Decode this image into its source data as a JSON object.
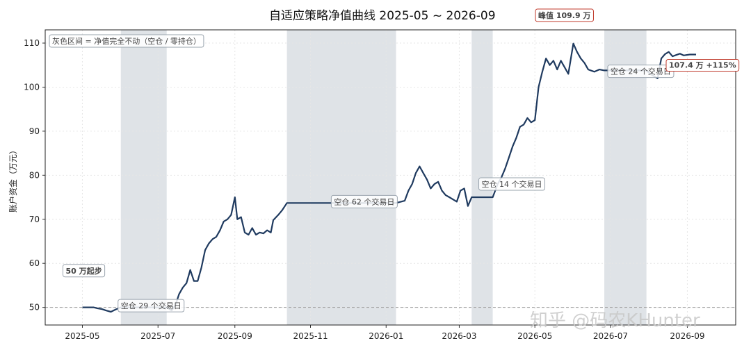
{
  "chart_data": {
    "type": "line",
    "title": "自适应策略净值曲线  2025-05 ~ 2026-09",
    "ylabel": "账户资金（万元）",
    "xlabel": "",
    "x_start": "2025-04-01",
    "x_end": "2026-10-10",
    "ylim": [
      46,
      113
    ],
    "yticks": [
      50,
      60,
      70,
      80,
      90,
      100,
      110
    ],
    "xticks": [
      "2025-05",
      "2025-07",
      "2025-09",
      "2025-11",
      "2026-01",
      "2026-03",
      "2026-05",
      "2026-07",
      "2026-09"
    ],
    "grid": true,
    "baseline": {
      "value": 50,
      "style": "dashed"
    },
    "legend_note": "灰色区间 = 净值完全不动（空仓 / 零持仓）",
    "flat_periods": [
      {
        "start": "2025-06-01",
        "end": "2025-07-08",
        "label": "空仓 29 个交易日"
      },
      {
        "start": "2025-10-13",
        "end": "2026-01-09",
        "label": "空仓 62 个交易日"
      },
      {
        "start": "2026-03-11",
        "end": "2026-03-28",
        "label": "空仓 14 个交易日"
      },
      {
        "start": "2026-06-26",
        "end": "2026-07-30",
        "label": "空仓 24 个交易日"
      }
    ],
    "annotations": {
      "start_label": "50 万起步",
      "peak_label": "峰值 109.9 万",
      "end_label": "107.4 万  +115%"
    },
    "series": [
      {
        "color": "#1f3a5f",
        "points": [
          [
            "2025-05-01",
            50.0
          ],
          [
            "2025-05-06",
            50.0
          ],
          [
            "2025-05-10",
            50.0
          ],
          [
            "2025-05-13",
            49.8
          ],
          [
            "2025-05-17",
            49.6
          ],
          [
            "2025-05-20",
            49.3
          ],
          [
            "2025-05-24",
            49.0
          ],
          [
            "2025-05-27",
            49.4
          ],
          [
            "2025-05-30",
            49.8
          ],
          [
            "2025-06-01",
            50.0
          ],
          [
            "2025-06-15",
            50.0
          ],
          [
            "2025-07-08",
            50.0
          ],
          [
            "2025-07-12",
            49.3
          ],
          [
            "2025-07-15",
            50.5
          ],
          [
            "2025-07-18",
            53.0
          ],
          [
            "2025-07-21",
            54.5
          ],
          [
            "2025-07-24",
            55.5
          ],
          [
            "2025-07-27",
            58.5
          ],
          [
            "2025-07-30",
            56.0
          ],
          [
            "2025-08-02",
            56.0
          ],
          [
            "2025-08-05",
            59.0
          ],
          [
            "2025-08-08",
            63.0
          ],
          [
            "2025-08-11",
            64.5
          ],
          [
            "2025-08-14",
            65.5
          ],
          [
            "2025-08-17",
            66.0
          ],
          [
            "2025-08-20",
            67.5
          ],
          [
            "2025-08-23",
            69.5
          ],
          [
            "2025-08-26",
            70.0
          ],
          [
            "2025-08-29",
            71.0
          ],
          [
            "2025-09-01",
            75.0
          ],
          [
            "2025-09-03",
            70.0
          ],
          [
            "2025-09-06",
            70.5
          ],
          [
            "2025-09-09",
            67.0
          ],
          [
            "2025-09-12",
            66.5
          ],
          [
            "2025-09-15",
            68.0
          ],
          [
            "2025-09-18",
            66.5
          ],
          [
            "2025-09-21",
            67.0
          ],
          [
            "2025-09-24",
            66.8
          ],
          [
            "2025-09-27",
            67.5
          ],
          [
            "2025-09-30",
            67.0
          ],
          [
            "2025-10-02",
            69.8
          ],
          [
            "2025-10-06",
            71.0
          ],
          [
            "2025-10-09",
            72.0
          ],
          [
            "2025-10-13",
            73.7
          ],
          [
            "2025-11-20",
            73.7
          ],
          [
            "2026-01-09",
            73.7
          ],
          [
            "2026-01-13",
            74.0
          ],
          [
            "2026-01-16",
            74.2
          ],
          [
            "2026-01-19",
            76.5
          ],
          [
            "2026-01-22",
            78.0
          ],
          [
            "2026-01-25",
            80.5
          ],
          [
            "2026-01-28",
            82.0
          ],
          [
            "2026-01-31",
            80.5
          ],
          [
            "2026-02-03",
            79.0
          ],
          [
            "2026-02-06",
            77.0
          ],
          [
            "2026-02-09",
            78.0
          ],
          [
            "2026-02-12",
            78.5
          ],
          [
            "2026-02-15",
            76.5
          ],
          [
            "2026-02-18",
            75.5
          ],
          [
            "2026-02-21",
            75.0
          ],
          [
            "2026-02-24",
            74.5
          ],
          [
            "2026-02-27",
            74.0
          ],
          [
            "2026-03-02",
            76.5
          ],
          [
            "2026-03-05",
            77.0
          ],
          [
            "2026-03-08",
            73.0
          ],
          [
            "2026-03-11",
            75.0
          ],
          [
            "2026-03-20",
            75.0
          ],
          [
            "2026-03-28",
            75.0
          ],
          [
            "2026-04-01",
            78.0
          ],
          [
            "2026-04-04",
            79.5
          ],
          [
            "2026-04-07",
            81.5
          ],
          [
            "2026-04-10",
            84.0
          ],
          [
            "2026-04-13",
            86.5
          ],
          [
            "2026-04-16",
            88.5
          ],
          [
            "2026-04-19",
            91.0
          ],
          [
            "2026-04-22",
            91.5
          ],
          [
            "2026-04-25",
            93.0
          ],
          [
            "2026-04-28",
            92.0
          ],
          [
            "2026-05-01",
            92.5
          ],
          [
            "2026-05-04",
            100.0
          ],
          [
            "2026-05-07",
            103.5
          ],
          [
            "2026-05-10",
            106.5
          ],
          [
            "2026-05-13",
            105.0
          ],
          [
            "2026-05-16",
            106.0
          ],
          [
            "2026-05-19",
            104.0
          ],
          [
            "2026-05-22",
            106.0
          ],
          [
            "2026-05-25",
            104.5
          ],
          [
            "2026-05-28",
            103.0
          ],
          [
            "2026-06-01",
            109.9
          ],
          [
            "2026-06-04",
            108.0
          ],
          [
            "2026-06-07",
            106.5
          ],
          [
            "2026-06-10",
            105.5
          ],
          [
            "2026-06-13",
            104.0
          ],
          [
            "2026-06-18",
            103.5
          ],
          [
            "2026-06-22",
            104.0
          ],
          [
            "2026-06-26",
            103.8
          ],
          [
            "2026-07-10",
            103.8
          ],
          [
            "2026-07-30",
            103.8
          ],
          [
            "2026-08-02",
            103.0
          ],
          [
            "2026-08-05",
            102.5
          ],
          [
            "2026-08-08",
            102.0
          ],
          [
            "2026-08-11",
            106.5
          ],
          [
            "2026-08-14",
            107.5
          ],
          [
            "2026-08-17",
            108.0
          ],
          [
            "2026-08-20",
            107.0
          ],
          [
            "2026-08-23",
            107.3
          ],
          [
            "2026-08-26",
            107.6
          ],
          [
            "2026-08-29",
            107.2
          ],
          [
            "2026-09-03",
            107.4
          ],
          [
            "2026-09-08",
            107.4
          ]
        ]
      }
    ],
    "watermark": "知乎 @码农KHunter"
  },
  "colors": {
    "line": "#1f3a5f",
    "shade": "#dfe3e7",
    "grid": "#e6e6e6",
    "baseline": "#9a9a9a",
    "accent": "#c0392b"
  }
}
